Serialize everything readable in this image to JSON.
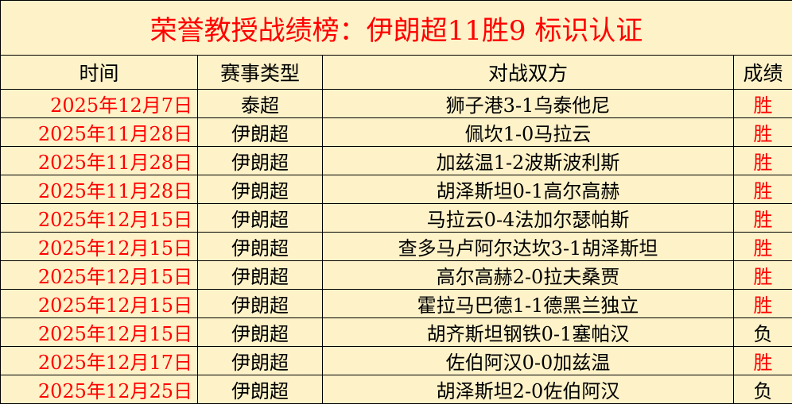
{
  "title": "荣誉教授战绩榜：伊朗超11胜9 标识认证",
  "headers": [
    "时间",
    "赛事类型",
    "对战双方",
    "成绩"
  ],
  "colors": {
    "win": "#ff0000",
    "loss": "#000000",
    "date": "#ff0000",
    "background": "#fdf2c8"
  },
  "rows": [
    {
      "date": "2025年12月7日",
      "league": "泰超",
      "match": "狮子港3-1乌泰他尼",
      "result": "胜"
    },
    {
      "date": "2025年11月28日",
      "league": "伊朗超",
      "match": "佩坎1-0马拉云",
      "result": "胜"
    },
    {
      "date": "2025年11月28日",
      "league": "伊朗超",
      "match": "加兹温1-2波斯波利斯",
      "result": "胜"
    },
    {
      "date": "2025年11月28日",
      "league": "伊朗超",
      "match": "胡泽斯坦0-1高尔高赫",
      "result": "胜"
    },
    {
      "date": "2025年12月15日",
      "league": "伊朗超",
      "match": "马拉云0-4法加尔瑟帕斯",
      "result": "胜"
    },
    {
      "date": "2025年12月15日",
      "league": "伊朗超",
      "match": "查多马卢阿尔达坎3-1胡泽斯坦",
      "result": "胜"
    },
    {
      "date": "2025年12月15日",
      "league": "伊朗超",
      "match": "高尔高赫2-0拉夫桑贾",
      "result": "胜"
    },
    {
      "date": "2025年12月15日",
      "league": "伊朗超",
      "match": "霍拉马巴德1-1德黑兰独立",
      "result": "胜"
    },
    {
      "date": "2025年12月15日",
      "league": "伊朗超",
      "match": "胡齐斯坦钢铁0-1塞帕汉",
      "result": "负"
    },
    {
      "date": "2025年12月17日",
      "league": "伊朗超",
      "match": "佐伯阿汉0-0加兹温",
      "result": "胜"
    },
    {
      "date": "2025年12月25日",
      "league": "伊朗超",
      "match": "胡泽斯坦2-0佐伯阿汉",
      "result": "负"
    }
  ]
}
